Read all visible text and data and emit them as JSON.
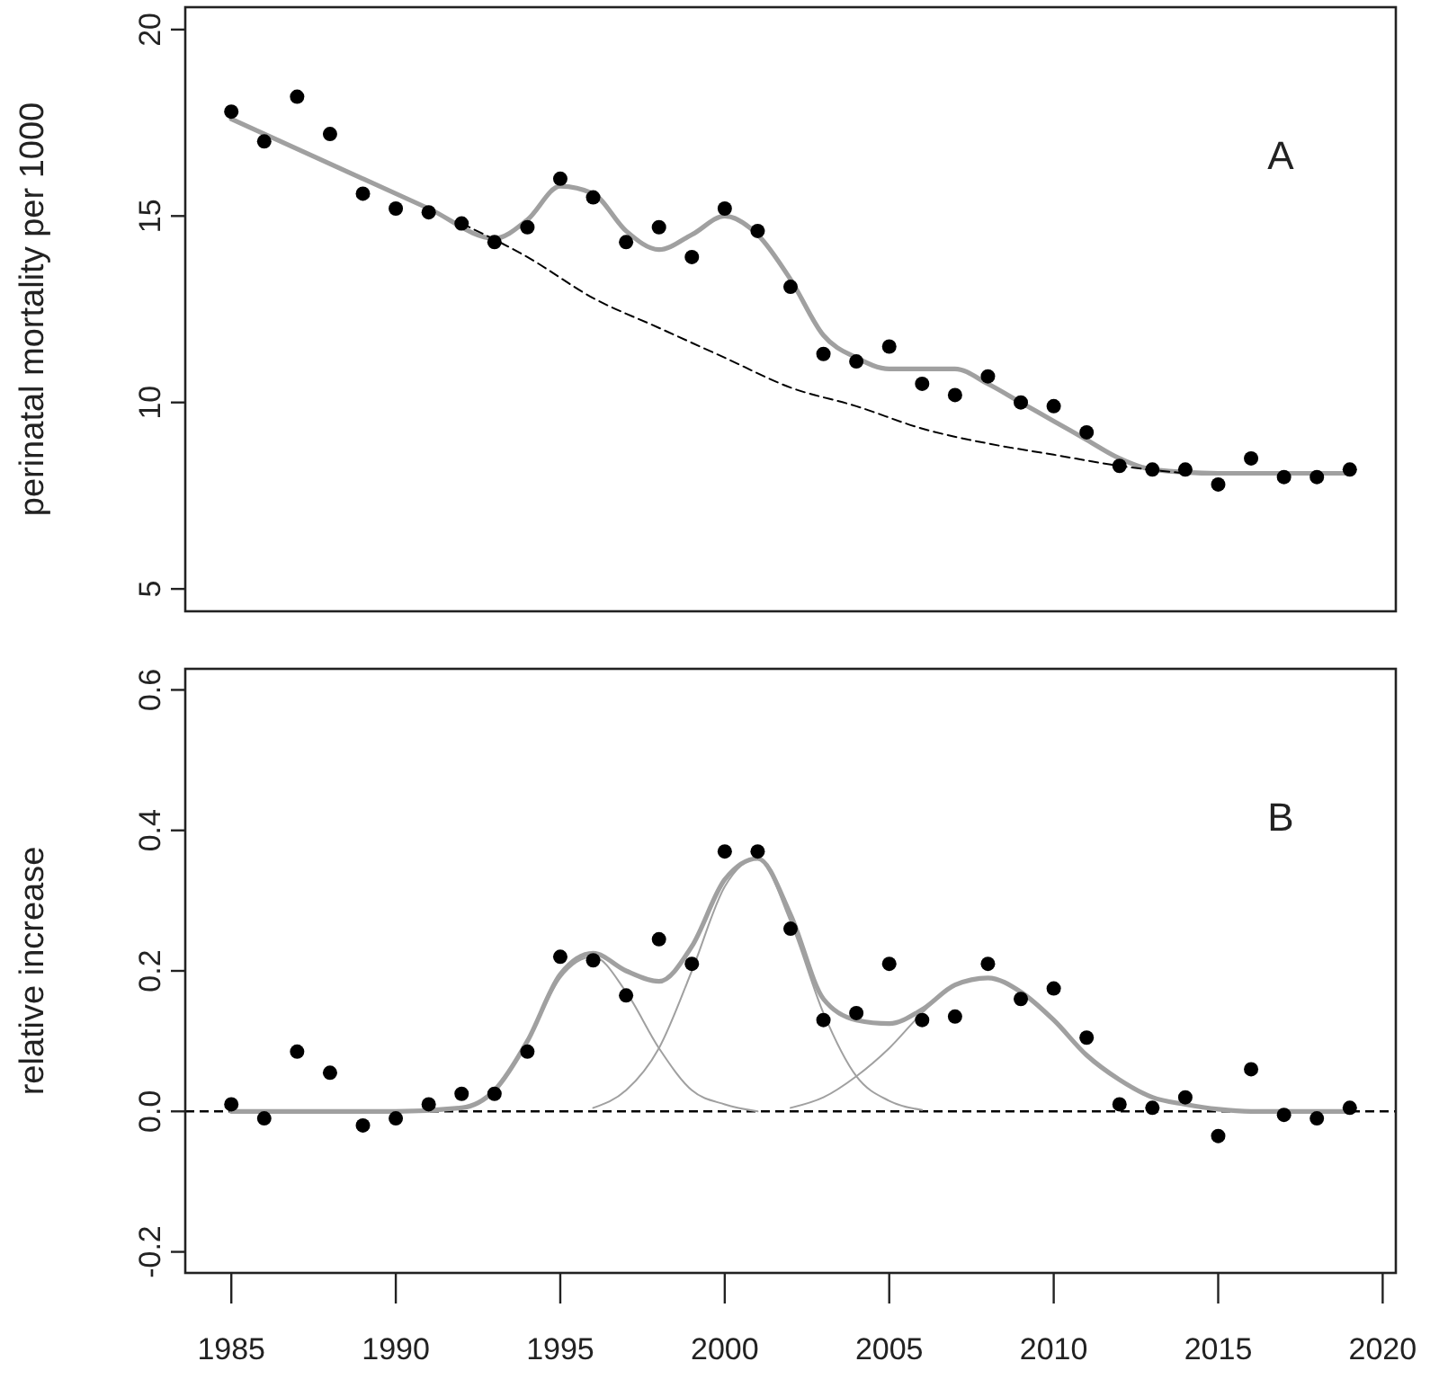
{
  "chart_data": [
    {
      "type": "scatter",
      "ylabel": "perinatal mortality per 1000",
      "xlim": [
        1983.6,
        2020.4
      ],
      "ylim": [
        4.4,
        20.6
      ],
      "yticks": [
        5,
        10,
        15,
        20
      ],
      "tick_labels": "y",
      "annotations": [
        "A"
      ],
      "series": [
        {
          "type": "line",
          "color": "#a0a0a0",
          "x": [
            1985,
            1987,
            1989,
            1991,
            1993,
            1994,
            1995,
            1996,
            1997,
            1998,
            1999,
            2000,
            2001,
            2002,
            2003,
            2004,
            2005,
            2006,
            2007,
            2008,
            2009,
            2010,
            2011,
            2012,
            2013,
            2015,
            2017,
            2019
          ],
          "values": [
            17.6,
            16.8,
            16.0,
            15.2,
            14.4,
            14.9,
            15.8,
            15.6,
            14.6,
            14.1,
            14.5,
            15.0,
            14.5,
            13.3,
            11.8,
            11.2,
            10.9,
            10.9,
            10.9,
            10.5,
            10.0,
            9.5,
            9.0,
            8.5,
            8.2,
            8.1,
            8.1,
            8.1
          ]
        },
        {
          "type": "line",
          "color": "#000000",
          "line_style": "dashed",
          "x": [
            1992,
            1994,
            1996,
            1998,
            2000,
            2002,
            2004,
            2006,
            2008,
            2010,
            2012,
            2014
          ],
          "values": [
            14.8,
            13.9,
            12.8,
            12.0,
            11.2,
            10.4,
            9.9,
            9.3,
            8.9,
            8.6,
            8.3,
            8.1
          ]
        },
        {
          "color": "#000000",
          "marker": "circle",
          "x": [
            1985,
            1986,
            1987,
            1988,
            1989,
            1990,
            1991,
            1992,
            1993,
            1994,
            1995,
            1996,
            1997,
            1998,
            1999,
            2000,
            2001,
            2002,
            2003,
            2004,
            2005,
            2006,
            2007,
            2008,
            2009,
            2010,
            2011,
            2012,
            2013,
            2014,
            2015,
            2016,
            2017,
            2018,
            2019
          ],
          "values": [
            17.8,
            17.0,
            18.2,
            17.2,
            15.6,
            15.2,
            15.1,
            14.8,
            14.3,
            14.7,
            16.0,
            15.5,
            14.3,
            14.7,
            13.9,
            15.2,
            14.6,
            13.1,
            11.3,
            11.1,
            11.5,
            10.5,
            10.2,
            10.7,
            10.0,
            9.9,
            9.2,
            8.3,
            8.2,
            8.2,
            7.8,
            8.5,
            8.0,
            8.0,
            8.2
          ]
        }
      ]
    },
    {
      "type": "scatter",
      "ylabel": "relative increase",
      "xlim": [
        1983.6,
        2020.4
      ],
      "xticks": [
        1985,
        1990,
        1995,
        2000,
        2005,
        2010,
        2015,
        2020
      ],
      "ylim": [
        -0.23,
        0.63
      ],
      "yticks": [
        -0.2,
        {
          "value": 0,
          "label": "0.0"
        },
        0.2,
        0.4,
        0.6
      ],
      "annotations": [
        "B"
      ],
      "ref_lines": [
        {
          "axis": "y",
          "value": 0,
          "color": "#000000",
          "line_style": "dashed"
        }
      ],
      "series": [
        {
          "type": "line",
          "color": "#a0a0a0",
          "x": [
            1985,
            1990,
            1992,
            1993,
            1994,
            1995,
            1996,
            1997,
            1998,
            1999,
            2000,
            2001,
            2002,
            2003,
            2004,
            2005,
            2006,
            2007,
            2008,
            2009,
            2010,
            2011,
            2012,
            2013,
            2014,
            2015,
            2016,
            2019
          ],
          "values": [
            0,
            0,
            0.005,
            0.03,
            0.1,
            0.195,
            0.225,
            0.2,
            0.185,
            0.235,
            0.33,
            0.36,
            0.28,
            0.16,
            0.13,
            0.125,
            0.145,
            0.18,
            0.19,
            0.17,
            0.13,
            0.08,
            0.045,
            0.02,
            0.01,
            0.003,
            0,
            0
          ]
        },
        {
          "type": "line",
          "color": "#a0a0a0",
          "x": [
            1991,
            1992,
            1993,
            1994,
            1995,
            1996,
            1997,
            1998,
            1999,
            2000,
            2001
          ],
          "values": [
            0,
            0.005,
            0.03,
            0.1,
            0.19,
            0.22,
            0.17,
            0.09,
            0.03,
            0.01,
            0
          ]
        },
        {
          "type": "line",
          "color": "#a0a0a0",
          "x": [
            1996,
            1997,
            1998,
            1999,
            2000,
            2001,
            2002,
            2003,
            2004,
            2005,
            2006
          ],
          "values": [
            0.005,
            0.03,
            0.09,
            0.2,
            0.32,
            0.36,
            0.27,
            0.14,
            0.05,
            0.015,
            0.002
          ]
        },
        {
          "type": "line",
          "color": "#a0a0a0",
          "x": [
            2002,
            2003,
            2004,
            2005,
            2006,
            2007,
            2008,
            2009,
            2010,
            2011,
            2012,
            2013,
            2014,
            2015,
            2016
          ],
          "values": [
            0.005,
            0.02,
            0.05,
            0.09,
            0.14,
            0.18,
            0.19,
            0.17,
            0.13,
            0.08,
            0.045,
            0.02,
            0.01,
            0.003,
            0
          ]
        },
        {
          "color": "#000000",
          "marker": "circle",
          "x": [
            1985,
            1986,
            1987,
            1988,
            1989,
            1990,
            1991,
            1992,
            1993,
            1994,
            1995,
            1996,
            1997,
            1998,
            1999,
            2000,
            2001,
            2002,
            2003,
            2004,
            2005,
            2006,
            2007,
            2008,
            2009,
            2010,
            2011,
            2012,
            2013,
            2014,
            2015,
            2016,
            2017,
            2018,
            2019
          ],
          "values": [
            0.01,
            -0.01,
            0.085,
            0.055,
            -0.02,
            -0.01,
            0.01,
            0.025,
            0.025,
            0.085,
            0.22,
            0.215,
            0.165,
            0.245,
            0.21,
            0.37,
            0.37,
            0.26,
            0.13,
            0.14,
            0.21,
            0.13,
            0.135,
            0.21,
            0.16,
            0.175,
            0.105,
            0.01,
            0.005,
            0.02,
            -0.035,
            0.06,
            -0.005,
            -0.01,
            0.005
          ]
        }
      ]
    }
  ]
}
